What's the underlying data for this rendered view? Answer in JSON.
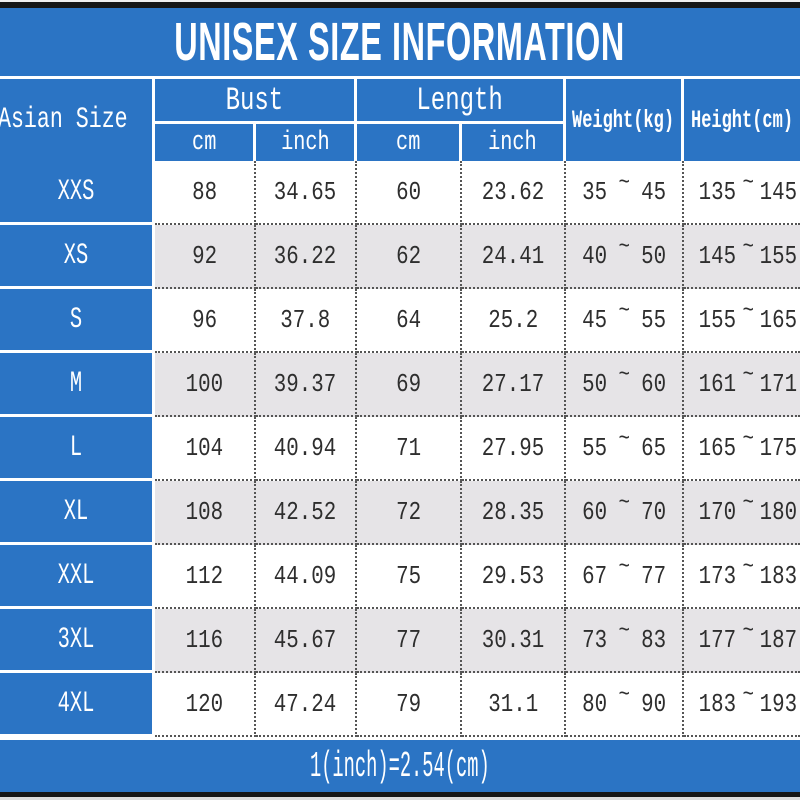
{
  "title": "UNISEX SIZE INFORMATION",
  "footer_note": "1(inch)=2.54(cm)",
  "range_separator": "~",
  "header": {
    "asian_size": "Asian Size",
    "bust": "Bust",
    "length": "Length",
    "weight": "Weight(kg)",
    "height": "Height(cm)",
    "bust_cm": "cm",
    "bust_inch": "inch",
    "length_cm": "cm",
    "length_inch": "inch"
  },
  "colors": {
    "accent_blue": "#2b74c4",
    "row_alt_gray": "#e6e4e7",
    "edge_bar_black": "#161616",
    "text_dark": "#2e2e2e"
  },
  "chart_data": {
    "type": "table",
    "title": "UNISEX SIZE INFORMATION",
    "column_groups": [
      {
        "label": "Asian Size",
        "sub": []
      },
      {
        "label": "Bust",
        "sub": [
          "cm",
          "inch"
        ]
      },
      {
        "label": "Length",
        "sub": [
          "cm",
          "inch"
        ]
      },
      {
        "label": "Weight(kg)",
        "sub": []
      },
      {
        "label": "Height(cm)",
        "sub": []
      }
    ],
    "rows": [
      {
        "size": "XXS",
        "bust_cm": "88",
        "bust_inch": "34.65",
        "length_cm": "60",
        "length_inch": "23.62",
        "weight_min": "35",
        "weight_max": "45",
        "height_min": "135",
        "height_max": "145"
      },
      {
        "size": "XS",
        "bust_cm": "92",
        "bust_inch": "36.22",
        "length_cm": "62",
        "length_inch": "24.41",
        "weight_min": "40",
        "weight_max": "50",
        "height_min": "145",
        "height_max": "155"
      },
      {
        "size": "S",
        "bust_cm": "96",
        "bust_inch": "37.8",
        "length_cm": "64",
        "length_inch": "25.2",
        "weight_min": "45",
        "weight_max": "55",
        "height_min": "155",
        "height_max": "165"
      },
      {
        "size": "M",
        "bust_cm": "100",
        "bust_inch": "39.37",
        "length_cm": "69",
        "length_inch": "27.17",
        "weight_min": "50",
        "weight_max": "60",
        "height_min": "161",
        "height_max": "171"
      },
      {
        "size": "L",
        "bust_cm": "104",
        "bust_inch": "40.94",
        "length_cm": "71",
        "length_inch": "27.95",
        "weight_min": "55",
        "weight_max": "65",
        "height_min": "165",
        "height_max": "175"
      },
      {
        "size": "XL",
        "bust_cm": "108",
        "bust_inch": "42.52",
        "length_cm": "72",
        "length_inch": "28.35",
        "weight_min": "60",
        "weight_max": "70",
        "height_min": "170",
        "height_max": "180"
      },
      {
        "size": "XXL",
        "bust_cm": "112",
        "bust_inch": "44.09",
        "length_cm": "75",
        "length_inch": "29.53",
        "weight_min": "67",
        "weight_max": "77",
        "height_min": "173",
        "height_max": "183"
      },
      {
        "size": "3XL",
        "bust_cm": "116",
        "bust_inch": "45.67",
        "length_cm": "77",
        "length_inch": "30.31",
        "weight_min": "73",
        "weight_max": "83",
        "height_min": "177",
        "height_max": "187"
      },
      {
        "size": "4XL",
        "bust_cm": "120",
        "bust_inch": "47.24",
        "length_cm": "79",
        "length_inch": "31.1",
        "weight_min": "80",
        "weight_max": "90",
        "height_min": "183",
        "height_max": "193"
      }
    ],
    "footnote": "1(inch)=2.54(cm)"
  }
}
